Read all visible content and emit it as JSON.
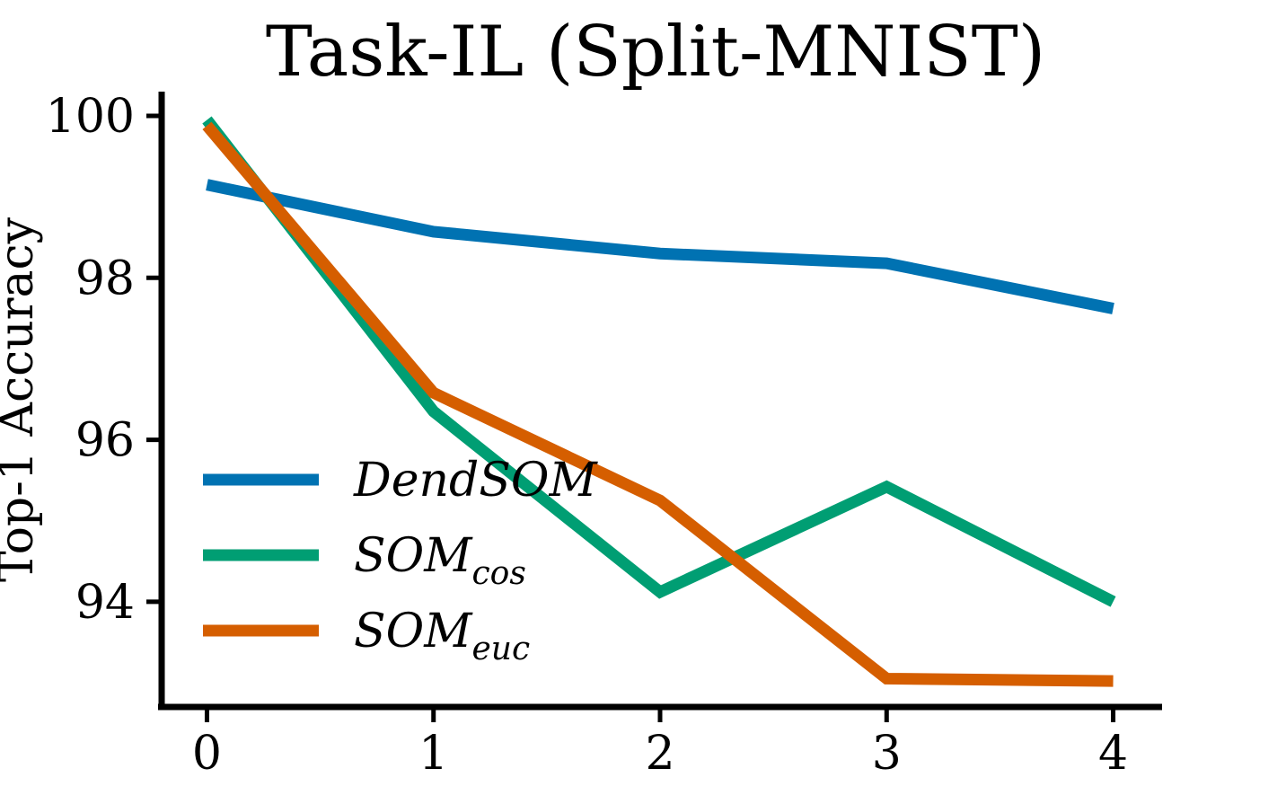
{
  "chart_data": {
    "type": "line",
    "title": "Task-IL (Split-MNIST)",
    "xlabel": "",
    "ylabel": "Top-1 Accuracy",
    "x": [
      0,
      1,
      2,
      3,
      4
    ],
    "xlim": [
      -0.2,
      4.2
    ],
    "ylim": [
      92.7,
      100.3
    ],
    "xticks": [
      "0",
      "1",
      "2",
      "3",
      "4"
    ],
    "yticks": [
      "94",
      "96",
      "98",
      "100"
    ],
    "grid": false,
    "legend_position": "lower-left",
    "series": [
      {
        "name": "DendSOM",
        "name_main": "DendSOM",
        "name_sub": "",
        "color": "#0072B2",
        "values": [
          99.15,
          98.57,
          98.3,
          98.18,
          97.62
        ]
      },
      {
        "name": "SOMcos",
        "name_main": "SOM",
        "name_sub": "cos",
        "color": "#009E73",
        "values": [
          99.95,
          96.35,
          94.12,
          95.42,
          94.0
        ]
      },
      {
        "name": "SOMeuc",
        "name_main": "SOM",
        "name_sub": "euc",
        "color": "#D55E00",
        "values": [
          99.88,
          96.58,
          95.25,
          93.05,
          93.02
        ]
      }
    ]
  }
}
